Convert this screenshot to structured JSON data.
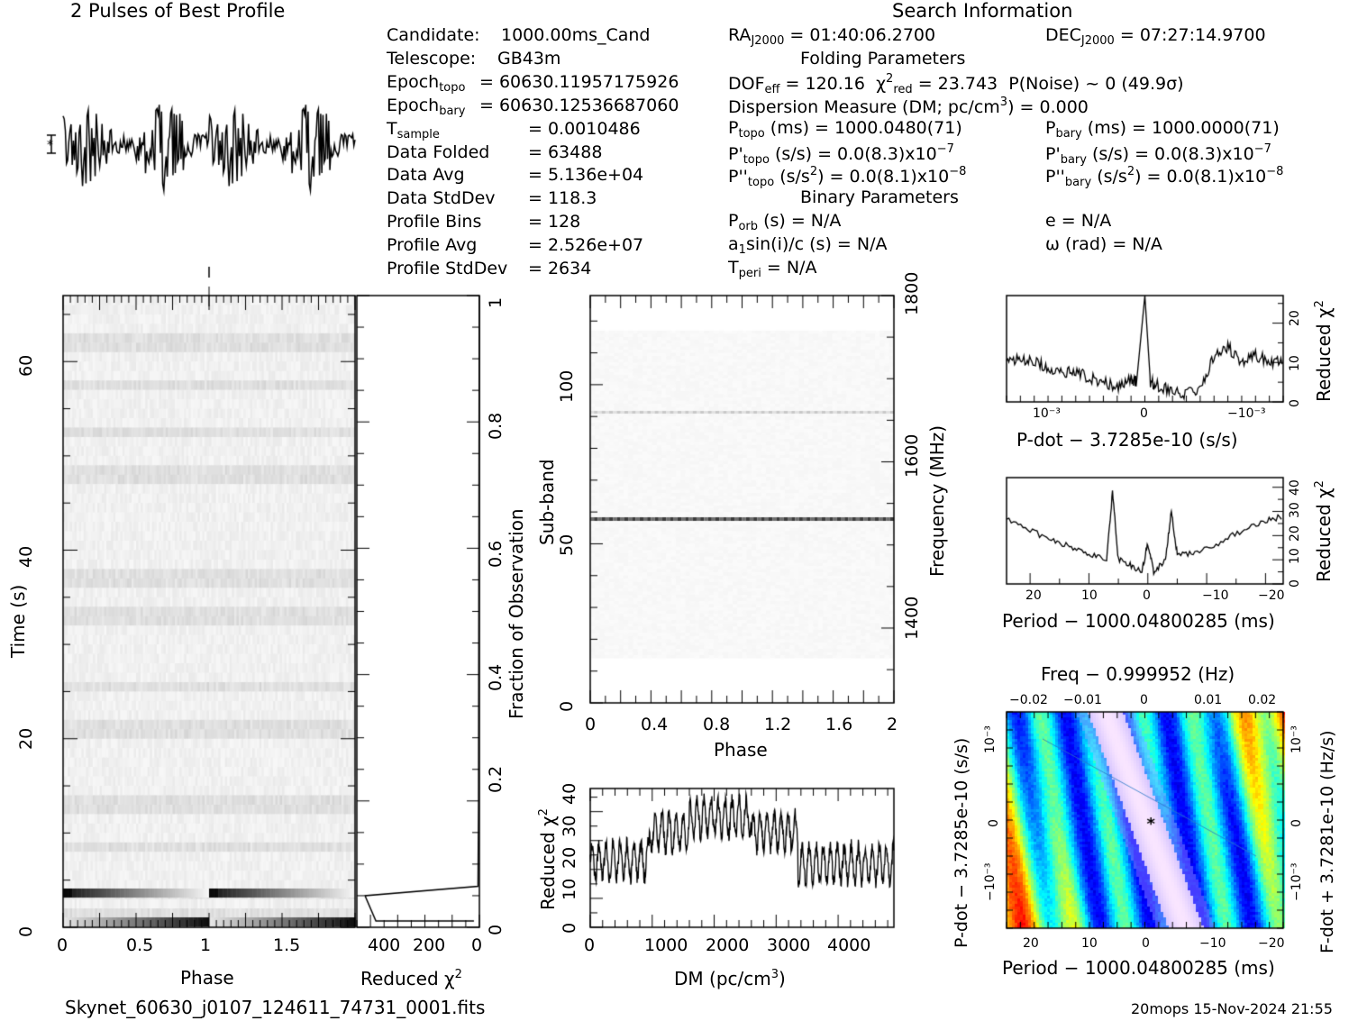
{
  "figure": {
    "left_title": "2 Pulses of Best Profile",
    "right_title": "Search Information",
    "footer_file": "Skynet_60630_j0107_124611_74731_0001.fits",
    "footer_stamp": "20mops 15-Nov-2024 21:55"
  },
  "info_left": [
    {
      "label": "Candidate:",
      "value": "1000.00ms_Cand"
    },
    {
      "label": "Telescope:",
      "value": "GB43m"
    },
    {
      "label": "Epoch",
      "sub": "topo",
      "value": "= 60630.11957175926"
    },
    {
      "label": "Epoch",
      "sub": "bary",
      "value": "= 60630.12536687060"
    },
    {
      "label": "T",
      "sub": "sample",
      "value": "=   0.0010486"
    },
    {
      "label": "Data Folded",
      "value": "=   63488"
    },
    {
      "label": "Data Avg",
      "value": "=   5.136e+04"
    },
    {
      "label": "Data StdDev",
      "value": "=   118.3"
    },
    {
      "label": "Profile Bins",
      "value": "=   128"
    },
    {
      "label": "Profile Avg",
      "value": "=   2.526e+07"
    },
    {
      "label": "Profile StdDev",
      "value": "=   2634"
    }
  ],
  "info_mid": {
    "ra": "= 01:40:06.2700",
    "dec": "= 07:27:14.9700",
    "folding_header": "Folding Parameters",
    "dof": "= 120.16",
    "chi_red": "= 23.743",
    "pnoise": "P(Noise) ~ 0    (49.9σ)",
    "dm_line": "Dispersion Measure (DM; pc/cm",
    "dm_value": ") = 0.000",
    "ptopo": "(ms) =   1000.0480(71)",
    "pbary": "(ms) =   1000.0000(71)",
    "pdot_topo": "(s/s) = 0.0(8.3)x10",
    "pdot_bary": "(s/s) = 0.0(8.3)x10",
    "pdd_topo": ") = 0.0(8.1)x10",
    "pdd_bary": ") = 0.0(8.1)x10",
    "exp7": "−7",
    "exp8": "−8",
    "binary_header": "Binary Parameters",
    "porb": "(s) = N/A",
    "asini": "sin(i)/c (s) = N/A",
    "tperi": "= N/A",
    "ecc": "e = N/A",
    "omega": "ω (rad) = N/A"
  },
  "axes_labels": {
    "phase": "Phase",
    "reduced_chi2": "Reduced χ",
    "time": "Time (s)",
    "fraction": "Fraction of Observation",
    "subband": "Sub-band",
    "frequency": "Frequency (MHz)",
    "dm": "DM (pc/cm",
    "pdot": "P-dot − 3.7285e-10 (s/s)",
    "period": "Period − 1000.04800285 (ms)",
    "freq_top": "Freq − 0.999952 (Hz)",
    "pdot_left": "P-dot − 3.7285e-10 (s/s)",
    "fdot_right": "F-dot + 3.7281e-10 (Hz/s)"
  },
  "chart_data": [
    {
      "id": "profile",
      "type": "line",
      "title": "2 Pulses of Best Profile",
      "x_range": [
        0,
        2
      ],
      "bins": 128,
      "pulses": 2,
      "grid": false
    },
    {
      "id": "time_phase",
      "type": "heatmap",
      "xlabel": "Phase",
      "ylabel": "Time (s)",
      "xlim": [
        0,
        2
      ],
      "ylim": [
        0,
        67
      ],
      "x_ticks": [
        "0",
        "0.5",
        "1",
        "1.5"
      ],
      "y_ticks": [
        "0",
        "20",
        "40",
        "60"
      ],
      "colormap": "grayscale",
      "bright_rows_time_s": [
        1,
        3.5,
        8.5,
        13,
        21,
        25.5,
        33,
        37,
        48,
        52.5,
        57.5,
        62
      ]
    },
    {
      "id": "time_chi2",
      "type": "line",
      "xlabel": "Reduced χ2",
      "ylabel": "Fraction of Observation",
      "xlim": [
        450,
        0
      ],
      "ylim": [
        0,
        1
      ],
      "x_ticks": [
        "400",
        "200",
        "0"
      ],
      "y_ticks": [
        "0",
        "0.2",
        "0.4",
        "0.6",
        "0.8",
        "1"
      ],
      "x": [
        20,
        380,
        420,
        5,
        3,
        2,
        1,
        0.5
      ],
      "y": [
        0.01,
        0.01,
        0.05,
        0.065,
        0.2,
        0.5,
        0.8,
        1.0
      ]
    },
    {
      "id": "subband_phase",
      "type": "heatmap",
      "xlabel": "Phase",
      "ylabel": "Sub-band",
      "xlim": [
        0,
        2
      ],
      "ylim": [
        0,
        128
      ],
      "x_ticks": [
        "0",
        "0.4",
        "0.8",
        "1.2",
        "1.6",
        "2"
      ],
      "y_ticks": [
        "0",
        "50",
        "100"
      ],
      "right_label": "Frequency (MHz)",
      "right_ticks": [
        "1400",
        "1600",
        "1800"
      ],
      "strong_subbands": [
        58,
        91
      ],
      "colormap": "grayscale"
    },
    {
      "id": "dm_chi2",
      "type": "line",
      "xlabel": "DM (pc/cm3)",
      "ylabel": "Reduced χ2",
      "xlim": [
        0,
        4900
      ],
      "ylim": [
        0,
        48
      ],
      "x_ticks": [
        "0",
        "1000",
        "2000",
        "3000",
        "4000"
      ],
      "y_ticks": [
        "0",
        "10",
        "20",
        "30",
        "40"
      ],
      "segments": [
        {
          "dm_range": [
            0,
            950
          ],
          "mean_chi2": 23
        },
        {
          "dm_range": [
            950,
            1600
          ],
          "mean_chi2": 33
        },
        {
          "dm_range": [
            1600,
            2600
          ],
          "mean_chi2": 38
        },
        {
          "dm_range": [
            2600,
            3350
          ],
          "mean_chi2": 33
        },
        {
          "dm_range": [
            3350,
            4900
          ],
          "mean_chi2": 22
        }
      ]
    },
    {
      "id": "pdot_chi2",
      "type": "line",
      "xlabel": "P-dot − 3.7285e-10 (s/s)",
      "ylabel": "Reduced χ2",
      "ylim": [
        0,
        27
      ],
      "x_ticks": [
        "10⁻³",
        "0",
        "−10⁻³"
      ],
      "y_ticks": [
        "0",
        "10",
        "20"
      ],
      "points": [
        [
          0,
          10
        ],
        [
          0.05,
          11
        ],
        [
          0.1,
          10
        ],
        [
          0.15,
          9
        ],
        [
          0.2,
          7
        ],
        [
          0.25,
          8
        ],
        [
          0.3,
          6
        ],
        [
          0.35,
          5
        ],
        [
          0.4,
          4
        ],
        [
          0.45,
          6
        ],
        [
          0.47,
          5
        ],
        [
          0.5,
          27
        ],
        [
          0.52,
          5
        ],
        [
          0.55,
          4
        ],
        [
          0.6,
          3
        ],
        [
          0.65,
          2
        ],
        [
          0.7,
          3
        ],
        [
          0.75,
          12
        ],
        [
          0.8,
          14
        ],
        [
          0.85,
          10
        ],
        [
          0.9,
          12
        ],
        [
          0.95,
          10
        ],
        [
          1.0,
          11
        ]
      ]
    },
    {
      "id": "period_chi2",
      "type": "line",
      "xlabel": "Period − 1000.04800285 (ms)",
      "ylabel": "Reduced χ2",
      "xlim": [
        24,
        -23
      ],
      "ylim": [
        0,
        44
      ],
      "x_ticks": [
        "20",
        "10",
        "0",
        "−10",
        "−20"
      ],
      "y_ticks": [
        "0",
        "10",
        "20",
        "30",
        "40"
      ],
      "points": [
        [
          24,
          27
        ],
        [
          20,
          22
        ],
        [
          16,
          18
        ],
        [
          13,
          15
        ],
        [
          10,
          12
        ],
        [
          7,
          10
        ],
        [
          6,
          38
        ],
        [
          5,
          10
        ],
        [
          3,
          8
        ],
        [
          1,
          5
        ],
        [
          0,
          17
        ],
        [
          -1,
          5
        ],
        [
          -3,
          10
        ],
        [
          -4,
          30
        ],
        [
          -5,
          12
        ],
        [
          -8,
          13
        ],
        [
          -12,
          17
        ],
        [
          -16,
          22
        ],
        [
          -20,
          26
        ],
        [
          -23,
          28
        ]
      ]
    },
    {
      "id": "period_pdot",
      "type": "heatmap",
      "xlabel": "Period − 1000.04800285 (ms)",
      "ylabel": "P-dot − 3.7285e-10 (s/s)",
      "top_label": "Freq − 0.999952 (Hz)",
      "right_label": "F-dot + 3.7281e-10 (Hz/s)",
      "xlim": [
        24,
        -23
      ],
      "x_ticks": [
        "20",
        "10",
        "0",
        "−10",
        "−20"
      ],
      "top_ticks": [
        "−0.02",
        "−0.01",
        "0",
        "0.01",
        "0.02"
      ],
      "left_ticks": [
        "10⁻³",
        "0",
        "−10⁻³"
      ],
      "right_ticks": [
        "10⁻³",
        "0",
        "−10⁻³"
      ],
      "colormap": "jet",
      "peak": [
        0,
        0
      ]
    }
  ]
}
